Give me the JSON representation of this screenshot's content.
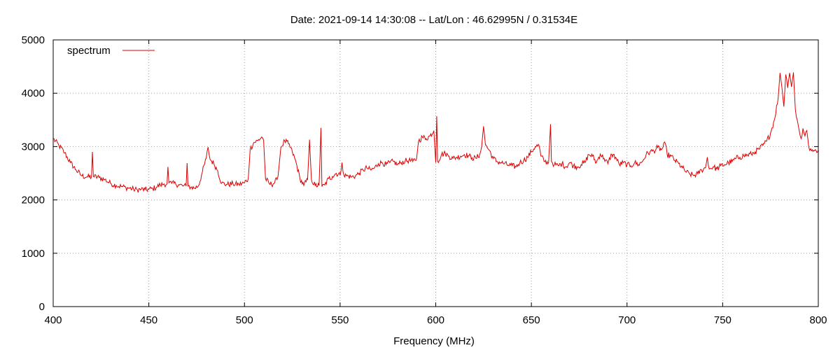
{
  "chart_data": {
    "type": "line",
    "title": "Date: 2021-09-14 14:30:08  --  Lat/Lon : 46.62995N / 0.31534E",
    "xlabel": "Frequency (MHz)",
    "ylabel": "",
    "xlim": [
      400,
      800
    ],
    "ylim": [
      0,
      5000
    ],
    "x_ticks": [
      400,
      450,
      500,
      550,
      600,
      650,
      700,
      750,
      800
    ],
    "y_ticks": [
      0,
      1000,
      2000,
      3000,
      4000,
      5000
    ],
    "grid": true,
    "legend_position": "top-left",
    "series": [
      {
        "name": "spectrum",
        "color": "#dd0000",
        "points": [
          [
            400,
            3150
          ],
          [
            403,
            3020
          ],
          [
            406,
            2880
          ],
          [
            409,
            2700
          ],
          [
            412,
            2560
          ],
          [
            415,
            2450
          ],
          [
            418,
            2430
          ],
          [
            420,
            2430
          ],
          [
            420.5,
            2900
          ],
          [
            421,
            2440
          ],
          [
            424,
            2420
          ],
          [
            427,
            2380
          ],
          [
            430,
            2310
          ],
          [
            433,
            2270
          ],
          [
            436,
            2250
          ],
          [
            438,
            2230
          ],
          [
            440,
            2220
          ],
          [
            442,
            2200
          ],
          [
            444,
            2190
          ],
          [
            446,
            2200
          ],
          [
            448,
            2190
          ],
          [
            450,
            2200
          ],
          [
            452,
            2210
          ],
          [
            454,
            2240
          ],
          [
            456,
            2280
          ],
          [
            458,
            2300
          ],
          [
            459.5,
            2300
          ],
          [
            460,
            2620
          ],
          [
            460.5,
            2320
          ],
          [
            462,
            2310
          ],
          [
            464,
            2300
          ],
          [
            466,
            2280
          ],
          [
            468,
            2260
          ],
          [
            469.5,
            2260
          ],
          [
            470,
            2690
          ],
          [
            470.5,
            2260
          ],
          [
            472,
            2240
          ],
          [
            474,
            2220
          ],
          [
            476,
            2270
          ],
          [
            478,
            2520
          ],
          [
            480,
            2780
          ],
          [
            481,
            2990
          ],
          [
            482,
            2760
          ],
          [
            484,
            2680
          ],
          [
            486,
            2550
          ],
          [
            488,
            2310
          ],
          [
            491,
            2290
          ],
          [
            494,
            2300
          ],
          [
            497,
            2290
          ],
          [
            500,
            2320
          ],
          [
            502,
            2400
          ],
          [
            503,
            2950
          ],
          [
            505,
            3080
          ],
          [
            507,
            3110
          ],
          [
            509,
            3180
          ],
          [
            510,
            3120
          ],
          [
            511,
            2400
          ],
          [
            513,
            2300
          ],
          [
            515,
            2300
          ],
          [
            517,
            2380
          ],
          [
            518,
            2600
          ],
          [
            519,
            2980
          ],
          [
            521,
            3110
          ],
          [
            523,
            3050
          ],
          [
            525,
            2900
          ],
          [
            527,
            2700
          ],
          [
            529,
            2400
          ],
          [
            531,
            2270
          ],
          [
            533,
            2380
          ],
          [
            534,
            3130
          ],
          [
            535,
            2380
          ],
          [
            537,
            2270
          ],
          [
            539,
            2270
          ],
          [
            540,
            3350
          ],
          [
            540.5,
            2250
          ],
          [
            542,
            2280
          ],
          [
            544,
            2400
          ],
          [
            546,
            2440
          ],
          [
            548,
            2500
          ],
          [
            550,
            2460
          ],
          [
            551,
            2700
          ],
          [
            552,
            2460
          ],
          [
            554,
            2450
          ],
          [
            556,
            2430
          ],
          [
            558,
            2450
          ],
          [
            560,
            2500
          ],
          [
            562,
            2560
          ],
          [
            564,
            2600
          ],
          [
            566,
            2560
          ],
          [
            568,
            2600
          ],
          [
            570,
            2680
          ],
          [
            572,
            2700
          ],
          [
            574,
            2660
          ],
          [
            576,
            2700
          ],
          [
            578,
            2720
          ],
          [
            580,
            2660
          ],
          [
            582,
            2700
          ],
          [
            584,
            2730
          ],
          [
            586,
            2740
          ],
          [
            588,
            2720
          ],
          [
            590,
            2780
          ],
          [
            591,
            3100
          ],
          [
            593,
            3180
          ],
          [
            595,
            3150
          ],
          [
            597,
            3200
          ],
          [
            599,
            3300
          ],
          [
            600,
            2700
          ],
          [
            600.5,
            3570
          ],
          [
            601,
            2720
          ],
          [
            603,
            2850
          ],
          [
            605,
            2870
          ],
          [
            607,
            2820
          ],
          [
            609,
            2780
          ],
          [
            611,
            2800
          ],
          [
            613,
            2820
          ],
          [
            615,
            2850
          ],
          [
            617,
            2830
          ],
          [
            619,
            2790
          ],
          [
            621,
            2780
          ],
          [
            623,
            2850
          ],
          [
            624,
            3000
          ],
          [
            625,
            3380
          ],
          [
            626,
            3030
          ],
          [
            628,
            2930
          ],
          [
            630,
            2780
          ],
          [
            632,
            2720
          ],
          [
            634,
            2700
          ],
          [
            636,
            2680
          ],
          [
            638,
            2650
          ],
          [
            640,
            2640
          ],
          [
            642,
            2620
          ],
          [
            644,
            2700
          ],
          [
            646,
            2740
          ],
          [
            648,
            2800
          ],
          [
            650,
            2900
          ],
          [
            652,
            3000
          ],
          [
            654,
            3020
          ],
          [
            655,
            2820
          ],
          [
            657,
            2720
          ],
          [
            659,
            2700
          ],
          [
            660,
            3420
          ],
          [
            660.5,
            2720
          ],
          [
            662,
            2660
          ],
          [
            664,
            2640
          ],
          [
            666,
            2680
          ],
          [
            668,
            2620
          ],
          [
            670,
            2700
          ],
          [
            672,
            2640
          ],
          [
            674,
            2620
          ],
          [
            676,
            2660
          ],
          [
            678,
            2700
          ],
          [
            680,
            2850
          ],
          [
            682,
            2820
          ],
          [
            684,
            2700
          ],
          [
            686,
            2860
          ],
          [
            688,
            2780
          ],
          [
            690,
            2680
          ],
          [
            692,
            2860
          ],
          [
            694,
            2800
          ],
          [
            696,
            2660
          ],
          [
            698,
            2700
          ],
          [
            700,
            2660
          ],
          [
            702,
            2640
          ],
          [
            704,
            2700
          ],
          [
            706,
            2660
          ],
          [
            708,
            2720
          ],
          [
            710,
            2850
          ],
          [
            712,
            2900
          ],
          [
            714,
            2920
          ],
          [
            716,
            2980
          ],
          [
            718,
            2940
          ],
          [
            720,
            3060
          ],
          [
            721,
            2850
          ],
          [
            723,
            2820
          ],
          [
            725,
            2740
          ],
          [
            727,
            2680
          ],
          [
            729,
            2600
          ],
          [
            731,
            2520
          ],
          [
            733,
            2480
          ],
          [
            735,
            2460
          ],
          [
            737,
            2490
          ],
          [
            739,
            2560
          ],
          [
            741,
            2600
          ],
          [
            742,
            2800
          ],
          [
            743,
            2580
          ],
          [
            745,
            2620
          ],
          [
            747,
            2580
          ],
          [
            749,
            2640
          ],
          [
            751,
            2660
          ],
          [
            753,
            2700
          ],
          [
            755,
            2720
          ],
          [
            757,
            2780
          ],
          [
            759,
            2800
          ],
          [
            761,
            2830
          ],
          [
            763,
            2840
          ],
          [
            765,
            2860
          ],
          [
            767,
            2900
          ],
          [
            769,
            2950
          ],
          [
            771,
            3020
          ],
          [
            773,
            3100
          ],
          [
            775,
            3250
          ],
          [
            777,
            3500
          ],
          [
            779,
            3900
          ],
          [
            780,
            4380
          ],
          [
            781,
            4100
          ],
          [
            782,
            3750
          ],
          [
            783,
            4350
          ],
          [
            784,
            4100
          ],
          [
            785,
            4380
          ],
          [
            786,
            4120
          ],
          [
            787,
            4390
          ],
          [
            788,
            3700
          ],
          [
            789,
            3500
          ],
          [
            790,
            3300
          ],
          [
            791,
            3150
          ],
          [
            792,
            3340
          ],
          [
            793,
            3200
          ],
          [
            794,
            3300
          ],
          [
            795,
            3000
          ],
          [
            796,
            2960
          ],
          [
            798,
            2920
          ],
          [
            800,
            2930
          ]
        ]
      }
    ]
  }
}
